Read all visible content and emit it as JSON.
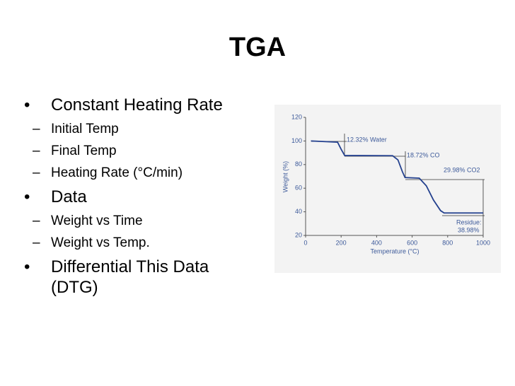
{
  "title": "TGA",
  "bullets": [
    {
      "text": "Constant Heating Rate",
      "sub": [
        "Initial Temp",
        "Final Temp",
        "Heating Rate (°C/min)"
      ]
    },
    {
      "text": "Data",
      "sub": [
        "Weight vs Time",
        "Weight vs Temp."
      ]
    },
    {
      "text": "Differential This Data (DTG)"
    }
  ],
  "chart_data": {
    "type": "line",
    "x_label": "Temperature (°C)",
    "y_label": "Weight (%)",
    "xlim": [
      0,
      1000
    ],
    "ylim": [
      20,
      120
    ],
    "xticks": [
      0,
      200,
      400,
      600,
      800,
      1000
    ],
    "yticks": [
      20,
      40,
      60,
      80,
      100,
      120
    ],
    "annotations": [
      "12.32% Water",
      "18.72% CO",
      "29.98% CO2",
      "Residue:",
      "38.98%"
    ],
    "x": [
      30,
      180,
      200,
      220,
      490,
      520,
      545,
      560,
      640,
      680,
      720,
      760,
      780,
      1000
    ],
    "series": [
      {
        "color": "#23408e",
        "values": [
          100,
          99,
          93,
          87.7,
          87.5,
          84,
          74,
          69,
          68.5,
          62,
          50,
          41,
          39,
          39
        ]
      }
    ]
  }
}
